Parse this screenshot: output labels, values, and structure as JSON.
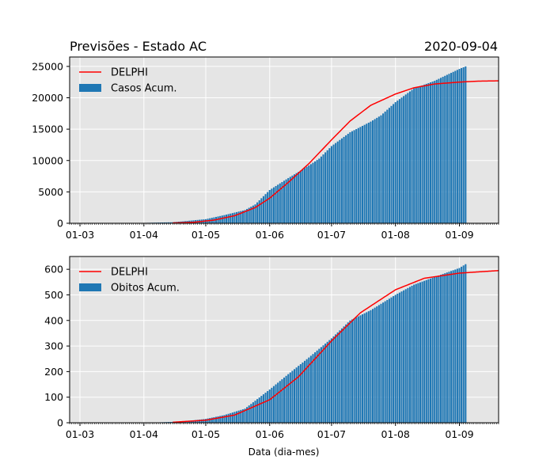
{
  "figure": {
    "title_left": "Previsões - Estado AC",
    "title_right": "2020-09-04",
    "xlabel": "Data (dia-mes)"
  },
  "colors": {
    "bar": "#1f77b4",
    "model_line": "#ff0000",
    "axes_bg": "#e5e5e5",
    "grid": "#ffffff"
  },
  "chart_data": [
    {
      "type": "bar",
      "title": "Previsões - Estado AC",
      "subtitle": "2020-09-04",
      "xlabel": "",
      "ylabel": "",
      "grid": true,
      "legend_position": "top-left",
      "x_axis": {
        "type": "date",
        "range": [
          "2020-02-25",
          "2020-09-20"
        ],
        "ticks": [
          {
            "date": "2020-03-01",
            "label": "01-03"
          },
          {
            "date": "2020-04-01",
            "label": "01-04"
          },
          {
            "date": "2020-05-01",
            "label": "01-05"
          },
          {
            "date": "2020-06-01",
            "label": "01-06"
          },
          {
            "date": "2020-07-01",
            "label": "01-07"
          },
          {
            "date": "2020-08-01",
            "label": "01-08"
          },
          {
            "date": "2020-09-01",
            "label": "01-09"
          }
        ]
      },
      "ylim": [
        0,
        26500
      ],
      "yticks": [
        {
          "value": 0,
          "label": "0"
        },
        {
          "value": 5000,
          "label": "5000"
        },
        {
          "value": 10000,
          "label": "10000"
        },
        {
          "value": 15000,
          "label": "15000"
        },
        {
          "value": 20000,
          "label": "20000"
        },
        {
          "value": 25000,
          "label": "25000"
        }
      ],
      "series": [
        {
          "name": "Casos Acum.",
          "type": "bar",
          "color": "#1f77b4",
          "points": [
            [
              "2020-03-17",
              0
            ],
            [
              "2020-04-01",
              60
            ],
            [
              "2020-04-15",
              160
            ],
            [
              "2020-05-01",
              650
            ],
            [
              "2020-05-10",
              1300
            ],
            [
              "2020-05-20",
              2100
            ],
            [
              "2020-05-25",
              3000
            ],
            [
              "2020-06-01",
              5300
            ],
            [
              "2020-06-10",
              7200
            ],
            [
              "2020-06-20",
              9200
            ],
            [
              "2020-06-25",
              10300
            ],
            [
              "2020-07-01",
              12300
            ],
            [
              "2020-07-10",
              14500
            ],
            [
              "2020-07-20",
              16200
            ],
            [
              "2020-07-25",
              17200
            ],
            [
              "2020-08-01",
              19300
            ],
            [
              "2020-08-10",
              21500
            ],
            [
              "2020-08-20",
              22700
            ],
            [
              "2020-08-25",
              23500
            ],
            [
              "2020-09-01",
              24600
            ],
            [
              "2020-09-04",
              25000
            ]
          ]
        },
        {
          "name": "DELPHI",
          "type": "line",
          "color": "#ff0000",
          "points": [
            [
              "2020-04-15",
              50
            ],
            [
              "2020-04-25",
              150
            ],
            [
              "2020-05-05",
              500
            ],
            [
              "2020-05-15",
              1200
            ],
            [
              "2020-05-25",
              2500
            ],
            [
              "2020-06-01",
              4000
            ],
            [
              "2020-06-10",
              6500
            ],
            [
              "2020-06-20",
              9500
            ],
            [
              "2020-07-01",
              13300
            ],
            [
              "2020-07-10",
              16300
            ],
            [
              "2020-07-20",
              18800
            ],
            [
              "2020-08-01",
              20600
            ],
            [
              "2020-08-10",
              21600
            ],
            [
              "2020-08-20",
              22200
            ],
            [
              "2020-09-01",
              22500
            ],
            [
              "2020-09-10",
              22650
            ],
            [
              "2020-09-20",
              22700
            ]
          ]
        }
      ]
    },
    {
      "type": "bar",
      "title": "",
      "xlabel": "Data (dia-mes)",
      "ylabel": "",
      "grid": true,
      "legend_position": "top-left",
      "x_axis": {
        "type": "date",
        "range": [
          "2020-02-25",
          "2020-09-20"
        ],
        "ticks": [
          {
            "date": "2020-03-01",
            "label": "01-03"
          },
          {
            "date": "2020-04-01",
            "label": "01-04"
          },
          {
            "date": "2020-05-01",
            "label": "01-05"
          },
          {
            "date": "2020-06-01",
            "label": "01-06"
          },
          {
            "date": "2020-07-01",
            "label": "01-07"
          },
          {
            "date": "2020-08-01",
            "label": "01-08"
          },
          {
            "date": "2020-09-01",
            "label": "01-09"
          }
        ]
      },
      "ylim": [
        0,
        650
      ],
      "yticks": [
        {
          "value": 0,
          "label": "0"
        },
        {
          "value": 100,
          "label": "100"
        },
        {
          "value": 200,
          "label": "200"
        },
        {
          "value": 300,
          "label": "300"
        },
        {
          "value": 400,
          "label": "400"
        },
        {
          "value": 500,
          "label": "500"
        },
        {
          "value": 600,
          "label": "600"
        }
      ],
      "series": [
        {
          "name": "Obitos Acum.",
          "type": "bar",
          "color": "#1f77b4",
          "points": [
            [
              "2020-04-01",
              0
            ],
            [
              "2020-04-10",
              2
            ],
            [
              "2020-04-20",
              5
            ],
            [
              "2020-05-01",
              15
            ],
            [
              "2020-05-10",
              30
            ],
            [
              "2020-05-20",
              55
            ],
            [
              "2020-06-01",
              130
            ],
            [
              "2020-06-10",
              190
            ],
            [
              "2020-06-20",
              255
            ],
            [
              "2020-07-01",
              330
            ],
            [
              "2020-07-10",
              400
            ],
            [
              "2020-07-20",
              440
            ],
            [
              "2020-08-01",
              500
            ],
            [
              "2020-08-10",
              540
            ],
            [
              "2020-08-20",
              570
            ],
            [
              "2020-09-01",
              605
            ],
            [
              "2020-09-04",
              620
            ]
          ]
        },
        {
          "name": "DELPHI",
          "type": "line",
          "color": "#ff0000",
          "points": [
            [
              "2020-04-15",
              2
            ],
            [
              "2020-05-01",
              10
            ],
            [
              "2020-05-15",
              30
            ],
            [
              "2020-06-01",
              90
            ],
            [
              "2020-06-15",
              180
            ],
            [
              "2020-07-01",
              320
            ],
            [
              "2020-07-15",
              430
            ],
            [
              "2020-08-01",
              520
            ],
            [
              "2020-08-15",
              565
            ],
            [
              "2020-09-01",
              585
            ],
            [
              "2020-09-20",
              595
            ]
          ]
        }
      ]
    }
  ]
}
